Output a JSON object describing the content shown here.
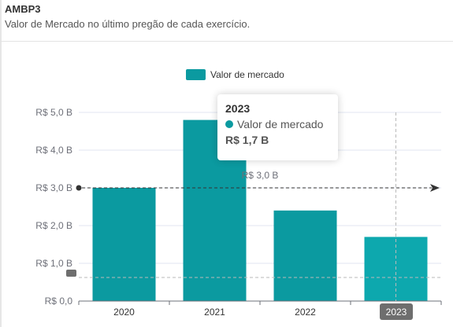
{
  "header": {
    "title": "AMBP3",
    "subtitle": "Valor de Mercado no último pregão de cada exercício."
  },
  "legend": {
    "label": "Valor de mercado"
  },
  "colors": {
    "bar": "#0b9aa0",
    "bar_highlight": "#0da8ae",
    "grid": "#e0e6f1",
    "axis_text": "#6e7079",
    "markline": "#333333",
    "tooltip_badge": "#6e6e6e"
  },
  "chart_data": {
    "type": "bar",
    "categories": [
      "2020",
      "2021",
      "2022",
      "2023"
    ],
    "series": [
      {
        "name": "Valor de mercado",
        "values": [
          3.0,
          4.8,
          2.4,
          1.7
        ]
      }
    ],
    "ylim": [
      0,
      5
    ],
    "yticks": [
      "R$ 0,0",
      "R$ 1,0 B",
      "R$ 2,0 B",
      "R$ 3,0 B",
      "R$ 4,0 B",
      "R$ 5,0 B"
    ],
    "legend_position": "top-center",
    "grid": true,
    "markline": {
      "value": 3.0,
      "label": "R$  3,0 B"
    },
    "highlighted_category": "2023"
  },
  "tooltip": {
    "title": "2023",
    "series_name": "Valor de mercado",
    "value": "R$ 1,7 B"
  },
  "axis_pointer": {
    "x_label": "2023"
  }
}
